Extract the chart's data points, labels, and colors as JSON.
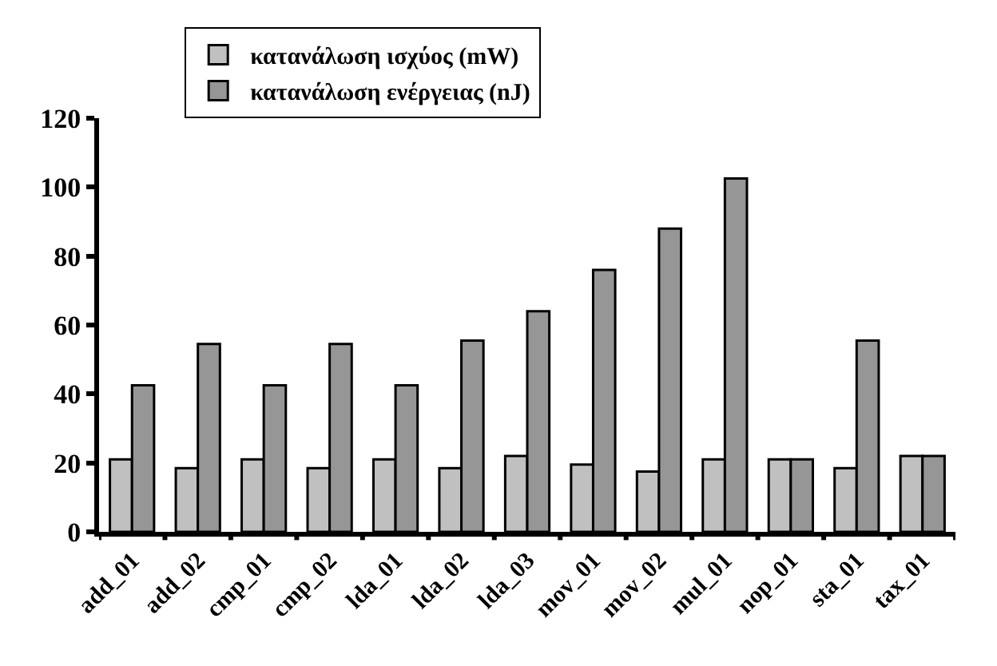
{
  "chart_data": {
    "type": "bar",
    "categories": [
      "add_01",
      "add_02",
      "cmp_01",
      "cmp_02",
      "lda_01",
      "lda_02",
      "lda_03",
      "mov_01",
      "mov_02",
      "mul_01",
      "nop_01",
      "sta_01",
      "tax_01"
    ],
    "series": [
      {
        "name": "κατανάλωση ισχύος (mW)",
        "color": "#c0c0c0",
        "values": [
          21,
          18.5,
          21,
          18.5,
          21,
          18.5,
          22,
          19.5,
          17.5,
          21,
          21,
          18.5,
          22
        ]
      },
      {
        "name": "κατανάλωση ενέργειας (nJ)",
        "color": "#969696",
        "values": [
          42.5,
          54.5,
          42.5,
          54.5,
          42.5,
          55.5,
          64,
          76,
          88,
          102.5,
          21,
          55.5,
          22
        ]
      }
    ],
    "ylim": [
      0,
      120
    ],
    "yticks": [
      0,
      20,
      40,
      60,
      80,
      100,
      120
    ],
    "grid": false,
    "legend": "top"
  }
}
